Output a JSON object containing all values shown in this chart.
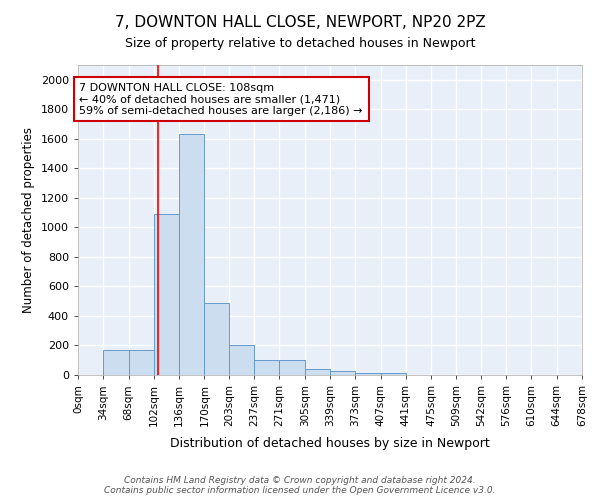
{
  "title": "7, DOWNTON HALL CLOSE, NEWPORT, NP20 2PZ",
  "subtitle": "Size of property relative to detached houses in Newport",
  "xlabel": "Distribution of detached houses by size in Newport",
  "ylabel": "Number of detached properties",
  "bar_color": "#ccddf0",
  "bar_edge_color": "#6699cc",
  "background_color": "#e8eff8",
  "grid_color": "#ffffff",
  "bin_edges": [
    0,
    34,
    68,
    102,
    136,
    170,
    203,
    237,
    271,
    305,
    339,
    373,
    407,
    441,
    475,
    509,
    542,
    576,
    610,
    644,
    678
  ],
  "bar_heights": [
    0,
    170,
    170,
    1090,
    1630,
    490,
    200,
    100,
    100,
    40,
    25,
    15,
    15,
    0,
    0,
    0,
    0,
    0,
    0,
    0
  ],
  "tick_labels": [
    "0sqm",
    "34sqm",
    "68sqm",
    "102sqm",
    "136sqm",
    "170sqm",
    "203sqm",
    "237sqm",
    "271sqm",
    "305sqm",
    "339sqm",
    "373sqm",
    "407sqm",
    "441sqm",
    "475sqm",
    "509sqm",
    "542sqm",
    "576sqm",
    "610sqm",
    "644sqm",
    "678sqm"
  ],
  "red_line_x": 108,
  "annotation_line1": "7 DOWNTON HALL CLOSE: 108sqm",
  "annotation_line2": "← 40% of detached houses are smaller (1,471)",
  "annotation_line3": "59% of semi-detached houses are larger (2,186) →",
  "annotation_box_color": "#ffffff",
  "annotation_border_color": "#cc0000",
  "footer_line1": "Contains HM Land Registry data © Crown copyright and database right 2024.",
  "footer_line2": "Contains public sector information licensed under the Open Government Licence v3.0.",
  "ylim": [
    0,
    2100
  ],
  "yticks": [
    0,
    200,
    400,
    600,
    800,
    1000,
    1200,
    1400,
    1600,
    1800,
    2000
  ],
  "fig_bg": "#ffffff"
}
